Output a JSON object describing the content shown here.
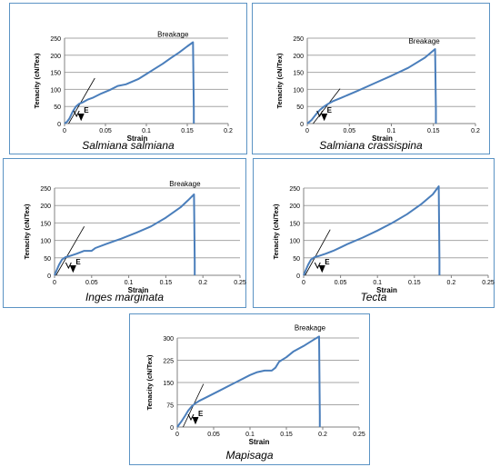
{
  "chart_data": [
    {
      "type": "line",
      "caption": "Salmiana salmiana",
      "xlabel": "Strain",
      "ylabel": "Tenacity (cN/Tex)",
      "annotation": "Breakage",
      "marker_label": "E",
      "xlim": [
        0,
        0.2
      ],
      "ylim": [
        0,
        250
      ],
      "xticks": [
        "0",
        "0.05",
        "0.1",
        "0.15",
        "0.2"
      ],
      "yticks": [
        "0",
        "50",
        "100",
        "150",
        "200",
        "250"
      ],
      "grid": true,
      "series": [
        {
          "x": [
            0,
            0.003,
            0.006,
            0.01,
            0.014,
            0.018,
            0.022,
            0.028,
            0.035,
            0.045,
            0.055,
            0.065,
            0.075,
            0.09,
            0.1,
            0.11,
            0.12,
            0.13,
            0.14,
            0.15,
            0.157,
            0.158,
            0.158
          ],
          "y": [
            0,
            5,
            15,
            35,
            50,
            58,
            62,
            70,
            76,
            88,
            98,
            110,
            115,
            130,
            145,
            160,
            175,
            192,
            208,
            226,
            238,
            40,
            0
          ]
        }
      ],
      "tangent": {
        "x": [
          0.005,
          0.037
        ],
        "y": [
          0,
          133
        ]
      }
    },
    {
      "type": "line",
      "caption": "Salmiana crassispina",
      "xlabel": "Strain",
      "ylabel": "Tenacity (cN/Tex)",
      "annotation": "Breakage",
      "marker_label": "E",
      "xlim": [
        0,
        0.2
      ],
      "ylim": [
        0,
        250
      ],
      "xticks": [
        "0",
        "0.05",
        "0.1",
        "0.15",
        "0.2"
      ],
      "yticks": [
        "0",
        "50",
        "100",
        "150",
        "200",
        "250"
      ],
      "grid": true,
      "series": [
        {
          "x": [
            0,
            0.005,
            0.01,
            0.015,
            0.02,
            0.025,
            0.03,
            0.04,
            0.06,
            0.08,
            0.1,
            0.12,
            0.14,
            0.152,
            0.153,
            0.153
          ],
          "y": [
            0,
            10,
            26,
            40,
            50,
            58,
            65,
            75,
            96,
            118,
            140,
            163,
            193,
            218,
            40,
            0
          ]
        }
      ],
      "tangent": {
        "x": [
          0.007,
          0.039
        ],
        "y": [
          0,
          102
        ]
      }
    },
    {
      "type": "line",
      "caption": "Inges marginata",
      "xlabel": "Strain",
      "ylabel": "Tenacity (cN/Tex)",
      "annotation": "Breakage",
      "marker_label": "E",
      "xlim": [
        0,
        0.25
      ],
      "ylim": [
        0,
        250
      ],
      "xticks": [
        "0",
        "0.05",
        "0.1",
        "0.15",
        "0.2",
        "0.25"
      ],
      "yticks": [
        "0",
        "50",
        "100",
        "150",
        "200",
        "250"
      ],
      "grid": true,
      "series": [
        {
          "x": [
            0,
            0.003,
            0.006,
            0.01,
            0.015,
            0.02,
            0.03,
            0.04,
            0.05,
            0.055,
            0.07,
            0.09,
            0.11,
            0.13,
            0.15,
            0.17,
            0.18,
            0.188,
            0.189,
            0.189
          ],
          "y": [
            0,
            15,
            30,
            45,
            52,
            55,
            62,
            70,
            70,
            78,
            90,
            105,
            122,
            140,
            165,
            195,
            215,
            232,
            40,
            0
          ]
        }
      ],
      "tangent": {
        "x": [
          0.002,
          0.04
        ],
        "y": [
          0,
          140
        ]
      }
    },
    {
      "type": "line",
      "caption": "Tecta",
      "xlabel": "Strain",
      "ylabel": "Tenacity (cN/Tex)",
      "marker_label": "E",
      "xlim": [
        0,
        0.25
      ],
      "ylim": [
        0,
        250
      ],
      "xticks": [
        "0",
        "0.05",
        "0.1",
        "0.15",
        "0.2",
        "0.25"
      ],
      "yticks": [
        "0",
        "50",
        "100",
        "150",
        "200",
        "250"
      ],
      "grid": true,
      "series": [
        {
          "x": [
            0,
            0.003,
            0.006,
            0.01,
            0.015,
            0.02,
            0.03,
            0.04,
            0.05,
            0.06,
            0.08,
            0.1,
            0.12,
            0.14,
            0.16,
            0.175,
            0.183,
            0.184,
            0.184
          ],
          "y": [
            0,
            15,
            30,
            45,
            52,
            55,
            62,
            70,
            80,
            90,
            108,
            128,
            150,
            175,
            205,
            232,
            255,
            40,
            0
          ]
        }
      ],
      "tangent": {
        "x": [
          0.002,
          0.036
        ],
        "y": [
          0,
          131
        ]
      }
    },
    {
      "type": "line",
      "caption": "Mapisaga",
      "xlabel": "Strain",
      "ylabel": "Tenacity (cN/Tex)",
      "annotation": "Breakage",
      "marker_label": "E",
      "xlim": [
        0,
        0.25
      ],
      "ylim": [
        0,
        300
      ],
      "xticks": [
        "0",
        "0.05",
        "0.1",
        "0.15",
        "0.2",
        "0.25"
      ],
      "yticks": [
        "0",
        "75",
        "150",
        "225",
        "300"
      ],
      "grid": true,
      "series": [
        {
          "x": [
            0,
            0.003,
            0.006,
            0.01,
            0.015,
            0.02,
            0.025,
            0.03,
            0.04,
            0.06,
            0.08,
            0.1,
            0.11,
            0.12,
            0.13,
            0.135,
            0.14,
            0.15,
            0.16,
            0.175,
            0.19,
            0.195,
            0.196,
            0.196
          ],
          "y": [
            0,
            10,
            20,
            35,
            55,
            70,
            80,
            88,
            100,
            125,
            150,
            175,
            185,
            190,
            190,
            200,
            220,
            235,
            255,
            275,
            298,
            305,
            40,
            0
          ]
        }
      ],
      "tangent": {
        "x": [
          0.008,
          0.036
        ],
        "y": [
          0,
          145
        ]
      }
    }
  ]
}
